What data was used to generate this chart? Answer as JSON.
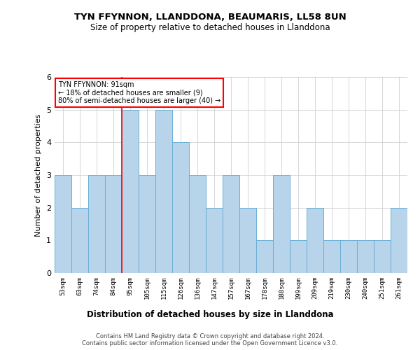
{
  "title": "TYN FFYNNON, LLANDDONA, BEAUMARIS, LL58 8UN",
  "subtitle": "Size of property relative to detached houses in Llanddona",
  "xlabel": "Distribution of detached houses by size in Llanddona",
  "ylabel": "Number of detached properties",
  "bar_labels": [
    "53sqm",
    "63sqm",
    "74sqm",
    "84sqm",
    "95sqm",
    "105sqm",
    "115sqm",
    "126sqm",
    "136sqm",
    "147sqm",
    "157sqm",
    "167sqm",
    "178sqm",
    "188sqm",
    "199sqm",
    "209sqm",
    "219sqm",
    "230sqm",
    "240sqm",
    "251sqm",
    "261sqm"
  ],
  "bar_values": [
    3,
    2,
    3,
    3,
    5,
    3,
    5,
    4,
    3,
    2,
    3,
    2,
    1,
    3,
    1,
    2,
    1,
    1,
    1,
    1,
    2
  ],
  "bar_color": "#b8d4ea",
  "bar_edgecolor": "#6aaed6",
  "ylim": [
    0,
    6
  ],
  "yticks": [
    0,
    1,
    2,
    3,
    4,
    5,
    6
  ],
  "red_line_x": 3.5,
  "annotation_text": "TYN FFYNNON: 91sqm\n← 18% of detached houses are smaller (9)\n80% of semi-detached houses are larger (40) →",
  "footer": "Contains HM Land Registry data © Crown copyright and database right 2024.\nContains public sector information licensed under the Open Government Licence v3.0.",
  "background_color": "#ffffff",
  "grid_color": "#d0d0d0"
}
